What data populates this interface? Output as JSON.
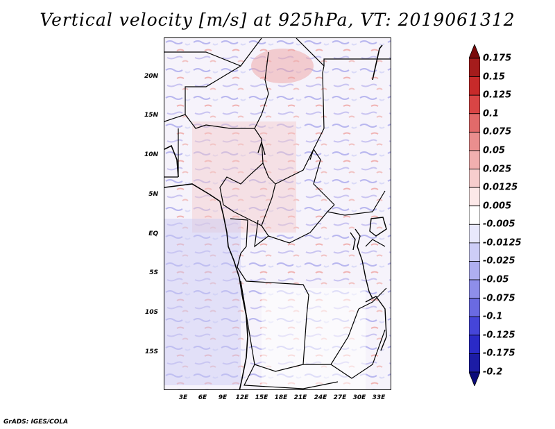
{
  "title": "Vertical velocity [m/s] at 925hPa, VT: 2019061312",
  "credit": "GrADS: IGES/COLA",
  "lat_labels": [
    "20N",
    "15N",
    "10N",
    "5N",
    "EQ",
    "5S",
    "10S",
    "15S"
  ],
  "lon_labels": [
    "3E",
    "6E",
    "9E",
    "12E",
    "15E",
    "18E",
    "21E",
    "24E",
    "27E",
    "30E",
    "33E"
  ],
  "colorbar": {
    "labels": [
      "0.175",
      "0.15",
      "0.125",
      "0.1",
      "0.075",
      "0.05",
      "0.025",
      "0.0125",
      "0.005",
      "-0.005",
      "-0.0125",
      "-0.025",
      "-0.05",
      "-0.075",
      "-0.1",
      "-0.125",
      "-0.175",
      "-0.2"
    ],
    "colors": [
      "#7a0a0a",
      "#a51c1c",
      "#c72a2a",
      "#d94545",
      "#e26a6a",
      "#ea8e8e",
      "#f1afaf",
      "#f7cdcd",
      "#fce8e8",
      "#ffffff",
      "#e8e8fc",
      "#cdcdf7",
      "#afaff1",
      "#8e8eea",
      "#6a6ae2",
      "#4545d9",
      "#2a2ac7",
      "#1c1ca5",
      "#0a0a7a"
    ]
  }
}
